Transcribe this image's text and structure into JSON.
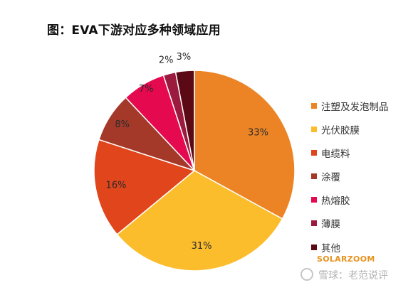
{
  "chart_data": {
    "type": "pie",
    "title": "图：EVA下游对应多种领域应用",
    "categories": [
      "注塑及发泡制品",
      "光伏胶膜",
      "电缆料",
      "涂覆",
      "热熔胶",
      "薄膜",
      "其他"
    ],
    "values": [
      33,
      31,
      16,
      8,
      7,
      2,
      3
    ],
    "value_labels": [
      "33%",
      "31%",
      "16%",
      "8%",
      "7%",
      "2%",
      "3%"
    ],
    "colors": [
      "#ec8426",
      "#fbbd2c",
      "#e0451b",
      "#a4392a",
      "#e5094f",
      "#9b1b3f",
      "#5a0915"
    ],
    "legend_position": "right"
  },
  "watermark": {
    "brand": "SOLARZOOM",
    "site": "雪球：老范说评"
  }
}
